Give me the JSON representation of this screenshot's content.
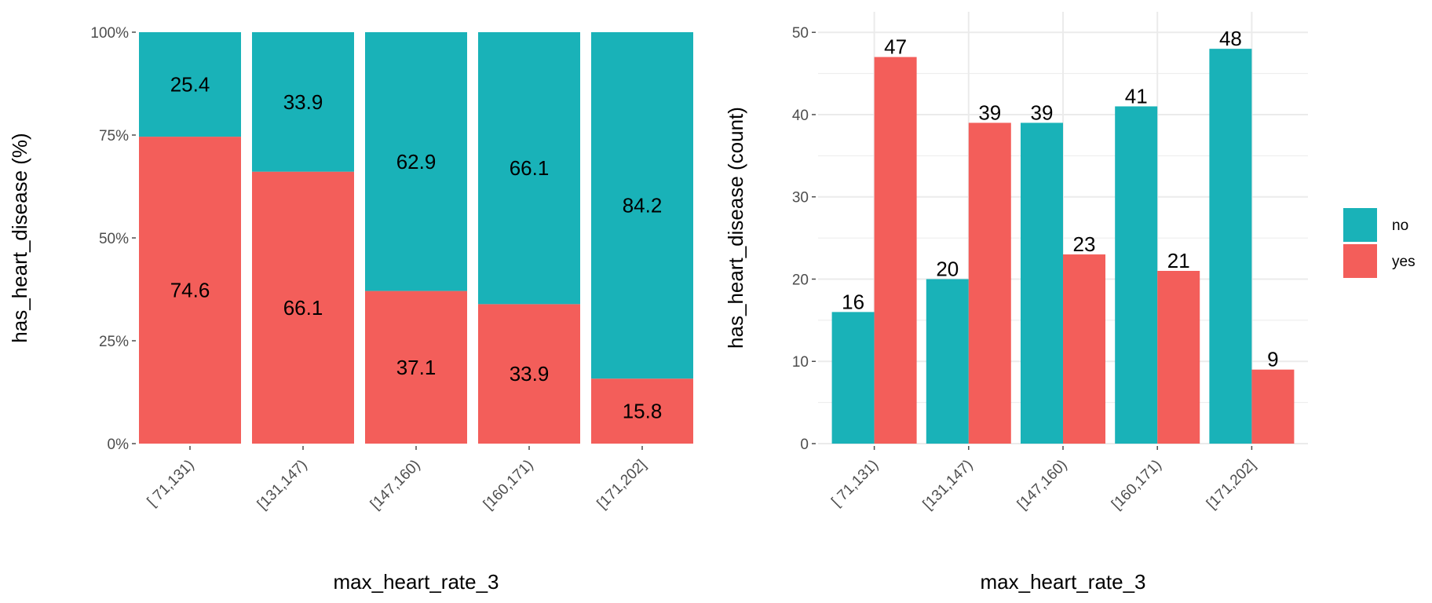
{
  "colors": {
    "no": "#19B2B8",
    "yes": "#F35E5A",
    "grid": "#EBEBEB",
    "tick": "#4d4d4d"
  },
  "legend": {
    "items": [
      {
        "label": "no"
      },
      {
        "label": "yes"
      }
    ]
  },
  "chart_data": [
    {
      "type": "bar",
      "stacking": "percent",
      "categories": [
        "[ 71,131)",
        "[131,147)",
        "[147,160)",
        "[160,171)",
        "[171,202]"
      ],
      "series": [
        {
          "name": "no",
          "values": [
            25.4,
            33.9,
            62.9,
            66.1,
            84.2
          ]
        },
        {
          "name": "yes",
          "values": [
            74.6,
            66.1,
            37.1,
            33.9,
            15.8
          ]
        }
      ],
      "title": "",
      "xlabel": "max_heart_rate_3",
      "ylabel": "has_heart_disease  (%)",
      "ylim": [
        0,
        100
      ],
      "yticks": [
        "0%",
        "25%",
        "50%",
        "75%",
        "100%"
      ],
      "grid": false
    },
    {
      "type": "bar",
      "stacking": "dodge",
      "categories": [
        "[ 71,131)",
        "[131,147)",
        "[147,160)",
        "[160,171)",
        "[171,202]"
      ],
      "series": [
        {
          "name": "no",
          "values": [
            16,
            20,
            39,
            41,
            48
          ]
        },
        {
          "name": "yes",
          "values": [
            47,
            39,
            23,
            21,
            9
          ]
        }
      ],
      "title": "",
      "xlabel": "max_heart_rate_3",
      "ylabel": "has_heart_disease  (count)",
      "ylim": [
        0,
        52.5
      ],
      "yticks": [
        "0",
        "10",
        "20",
        "30",
        "40",
        "50"
      ],
      "grid": true,
      "legend": "right"
    }
  ]
}
